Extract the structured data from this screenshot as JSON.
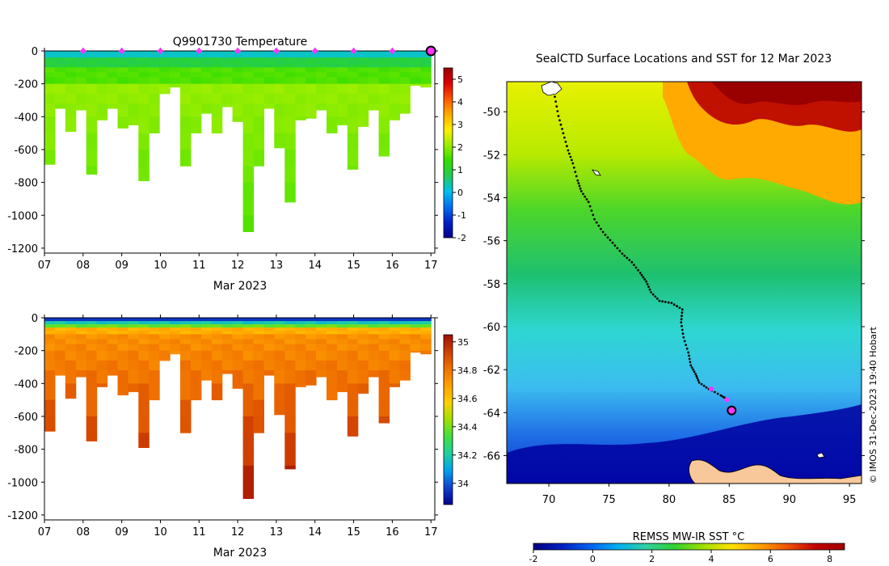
{
  "chart_data": [
    {
      "id": "temperature",
      "type": "heatmap",
      "title": "Q9901730  Temperature",
      "xlabel": "Mar 2023",
      "x_ticks": [
        "07",
        "08",
        "09",
        "10",
        "11",
        "12",
        "13",
        "14",
        "15",
        "16",
        "17"
      ],
      "x_range": [
        7,
        17.1
      ],
      "y_ticks": [
        0,
        -200,
        -400,
        -600,
        -800,
        -1000,
        -1200
      ],
      "y_range": [
        -1230,
        0
      ],
      "colorbar": {
        "ticks": [
          5,
          4,
          3,
          2,
          1,
          0,
          -1,
          -2
        ],
        "range": [
          -2,
          5.5
        ],
        "colors": [
          "#00008f",
          "#0020c8",
          "#0070f0",
          "#00c0f0",
          "#22cc55",
          "#33dd00",
          "#99ee00",
          "#ffee00",
          "#ffaa00",
          "#ff5500",
          "#dd0000",
          "#990000"
        ]
      },
      "profile_markers_day": [
        8,
        9,
        10,
        11,
        12,
        13,
        14,
        15,
        16
      ],
      "marker_color": "#ff33ff",
      "current_marker_day": 17,
      "profile_max_depths": [
        690,
        350,
        490,
        360,
        750,
        420,
        350,
        470,
        450,
        790,
        500,
        260,
        220,
        700,
        500,
        380,
        500,
        340,
        430,
        1100,
        700,
        350,
        590,
        920,
        420,
        410,
        360,
        500,
        450,
        720,
        460,
        360,
        640,
        420,
        380,
        210,
        220
      ]
    },
    {
      "id": "salinity",
      "type": "heatmap",
      "xlabel": "Mar 2023",
      "x_ticks": [
        "07",
        "08",
        "09",
        "10",
        "11",
        "12",
        "13",
        "14",
        "15",
        "16",
        "17"
      ],
      "x_range": [
        7,
        17.1
      ],
      "y_ticks": [
        0,
        -200,
        -400,
        -600,
        -800,
        -1000,
        -1200
      ],
      "y_range": [
        -1230,
        0
      ],
      "colorbar": {
        "ticks": [
          35,
          34.8,
          34.6,
          34.4,
          34.2,
          34
        ],
        "range": [
          33.85,
          35.05
        ],
        "colors": [
          "#00008f",
          "#1040d0",
          "#00a0f0",
          "#20d0a0",
          "#40e040",
          "#a0e000",
          "#ffd000",
          "#ffa000",
          "#f07000",
          "#d04000",
          "#a01000"
        ]
      },
      "profile_max_depths": [
        690,
        350,
        490,
        360,
        750,
        420,
        350,
        470,
        450,
        790,
        500,
        260,
        220,
        700,
        500,
        380,
        500,
        340,
        430,
        1100,
        700,
        350,
        590,
        920,
        420,
        410,
        360,
        500,
        450,
        720,
        460,
        360,
        640,
        420,
        380,
        210,
        220
      ]
    },
    {
      "id": "sst-map",
      "type": "map",
      "title": "SealCTD Surface Locations and SST for 12 Mar 2023",
      "x_ticks": [
        "70",
        "75",
        "80",
        "85",
        "90",
        "95"
      ],
      "x_range": [
        66.5,
        96
      ],
      "y_ticks": [
        "-50",
        "-52",
        "-54",
        "-56",
        "-58",
        "-60",
        "-62",
        "-64",
        "-66"
      ],
      "y_range": [
        -67.3,
        -48.6
      ],
      "track": [
        [
          70.5,
          -49.3
        ],
        [
          70.8,
          -50.2
        ],
        [
          71.2,
          -51.0
        ],
        [
          71.6,
          -51.8
        ],
        [
          72.0,
          -52.4
        ],
        [
          72.4,
          -53.2
        ],
        [
          72.7,
          -53.7
        ],
        [
          73.3,
          -54.2
        ],
        [
          73.8,
          -55.0
        ],
        [
          74.5,
          -55.6
        ],
        [
          75.3,
          -56.1
        ],
        [
          76.1,
          -56.6
        ],
        [
          76.9,
          -57.0
        ],
        [
          77.6,
          -57.5
        ],
        [
          78.1,
          -57.9
        ],
        [
          78.5,
          -58.4
        ],
        [
          79.2,
          -58.8
        ],
        [
          80.2,
          -58.9
        ],
        [
          81.1,
          -59.2
        ],
        [
          81.0,
          -59.8
        ],
        [
          81.2,
          -60.5
        ],
        [
          81.6,
          -61.2
        ],
        [
          81.8,
          -61.8
        ],
        [
          82.2,
          -62.2
        ],
        [
          82.5,
          -62.6
        ],
        [
          83.3,
          -62.9
        ],
        [
          84.3,
          -63.2
        ],
        [
          84.9,
          -63.4
        ]
      ],
      "track_markers": [
        [
          83.5,
          -62.9
        ],
        [
          84.8,
          -63.4
        ]
      ],
      "current_position": [
        85.2,
        -63.9
      ],
      "cbar_label": "REMSS MW-IR SST °C",
      "cbar_ticks": [
        "-2",
        "0",
        "2",
        "4",
        "6",
        "8"
      ],
      "cbar_range": [
        -2,
        8.5
      ]
    }
  ],
  "credit": "© IMOS 31-Dec-2023 19:40 Hobart"
}
